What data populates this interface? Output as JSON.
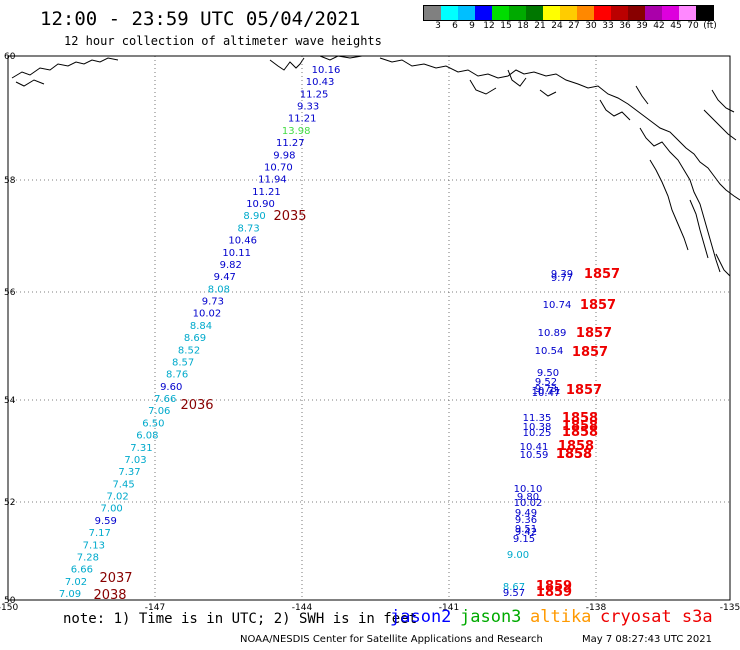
{
  "header": {
    "title": "12:00 - 23:59 UTC 05/04/2021",
    "subtitle": "12 hour collection of altimeter wave heights"
  },
  "colorbar": {
    "colors": [
      "#808080",
      "#00ffff",
      "#00bfff",
      "#0000ff",
      "#00dd00",
      "#00aa00",
      "#007700",
      "#ffff00",
      "#ffcc00",
      "#ff8800",
      "#ff0000",
      "#bb0000",
      "#880000",
      "#aa00aa",
      "#dd00dd",
      "#ff88ff",
      "#000000"
    ],
    "labels": [
      "3",
      "6",
      "9",
      "12",
      "15",
      "18",
      "21",
      "24",
      "27",
      "30",
      "33",
      "36",
      "39",
      "42",
      "45",
      "70",
      "(ft)"
    ]
  },
  "axes": {
    "lat_labels": [
      "60",
      "58",
      "56",
      "54",
      "52",
      "50"
    ],
    "lon_labels": [
      "-150",
      "-147",
      "-144",
      "-141",
      "-138",
      "-135"
    ]
  },
  "tracks": {
    "west": [
      {
        "swh": "10.16",
        "c": "#0000cc"
      },
      {
        "swh": "10.43",
        "c": "#0000cc"
      },
      {
        "swh": "11.25",
        "c": "#0000cc"
      },
      {
        "swh": "9.33",
        "c": "#0000cc"
      },
      {
        "swh": "11.21",
        "c": "#0000cc"
      },
      {
        "swh": "13.98",
        "c": "#44dd44"
      },
      {
        "swh": "11.27",
        "c": "#0000cc"
      },
      {
        "swh": "9.98",
        "c": "#0000cc"
      },
      {
        "swh": "10.70",
        "c": "#0000cc"
      },
      {
        "swh": "11.94",
        "c": "#0000cc"
      },
      {
        "swh": "11.21",
        "c": "#0000cc"
      },
      {
        "swh": "10.90",
        "c": "#0000cc"
      },
      {
        "swh": "8.90",
        "c": "#00aacc"
      },
      {
        "swh": "8.73",
        "c": "#00aacc"
      },
      {
        "swh": "10.46",
        "c": "#0000cc"
      },
      {
        "swh": "10.11",
        "c": "#0000cc"
      },
      {
        "swh": "9.82",
        "c": "#0000cc"
      },
      {
        "swh": "9.47",
        "c": "#0000cc"
      },
      {
        "swh": "8.08",
        "c": "#00aacc"
      },
      {
        "swh": "9.73",
        "c": "#0000cc"
      },
      {
        "swh": "10.02",
        "c": "#0000cc"
      },
      {
        "swh": "8.84",
        "c": "#00aacc"
      },
      {
        "swh": "8.69",
        "c": "#00aacc"
      },
      {
        "swh": "8.52",
        "c": "#00aacc"
      },
      {
        "swh": "8.57",
        "c": "#00aacc"
      },
      {
        "swh": "8.76",
        "c": "#00aacc"
      },
      {
        "swh": "9.60",
        "c": "#0000cc"
      },
      {
        "swh": "7.66",
        "c": "#00aacc"
      },
      {
        "swh": "7.06",
        "c": "#00aacc"
      },
      {
        "swh": "6.50",
        "c": "#00aacc"
      },
      {
        "swh": "6.08",
        "c": "#00aacc"
      },
      {
        "swh": "7.31",
        "c": "#00aacc"
      },
      {
        "swh": "7.03",
        "c": "#00aacc"
      },
      {
        "swh": "7.37",
        "c": "#00aacc"
      },
      {
        "swh": "7.45",
        "c": "#00aacc"
      },
      {
        "swh": "7.02",
        "c": "#00aacc"
      },
      {
        "swh": "7.00",
        "c": "#00aacc"
      },
      {
        "swh": "9.59",
        "c": "#0000cc"
      },
      {
        "swh": "7.17",
        "c": "#00aacc"
      },
      {
        "swh": "7.13",
        "c": "#00aacc"
      },
      {
        "swh": "7.28",
        "c": "#00aacc"
      },
      {
        "swh": "6.66",
        "c": "#00aacc"
      },
      {
        "swh": "7.02",
        "c": "#00aacc"
      },
      {
        "swh": "7.09",
        "c": "#00aacc"
      }
    ],
    "west_times": [
      "2035",
      "2036",
      "2037",
      "2038"
    ],
    "east": [
      {
        "swh": "9.39",
        "c": "#0000cc"
      },
      {
        "swh": "9.77",
        "c": "#0000cc"
      },
      {
        "swh": "10.74",
        "c": "#0000cc"
      },
      {
        "swh": "10.89",
        "c": "#0000cc"
      },
      {
        "swh": "10.54",
        "c": "#0000cc"
      },
      {
        "swh": "9.50",
        "c": "#0000cc"
      },
      {
        "swh": "9.52",
        "c": "#0000cc"
      },
      {
        "swh": "9.73",
        "c": "#0000cc"
      },
      {
        "swh": "10.71",
        "c": "#0000cc"
      },
      {
        "swh": "10.47",
        "c": "#0000cc"
      },
      {
        "swh": "11.35",
        "c": "#0000cc"
      },
      {
        "swh": "10.38",
        "c": "#0000cc"
      },
      {
        "swh": "10.25",
        "c": "#0000cc"
      },
      {
        "swh": "10.41",
        "c": "#0000cc"
      },
      {
        "swh": "10.59",
        "c": "#0000cc"
      },
      {
        "swh": "10.10",
        "c": "#0000cc"
      },
      {
        "swh": "9.80",
        "c": "#0000cc"
      },
      {
        "swh": "10.02",
        "c": "#0000cc"
      },
      {
        "swh": "9.49",
        "c": "#0000cc"
      },
      {
        "swh": "9.36",
        "c": "#0000cc"
      },
      {
        "swh": "9.51",
        "c": "#0000cc"
      },
      {
        "swh": "9.42",
        "c": "#0000cc"
      },
      {
        "swh": "9.15",
        "c": "#0000cc"
      },
      {
        "swh": "9.00",
        "c": "#00aacc"
      },
      {
        "swh": "8.67",
        "c": "#00aacc"
      },
      {
        "swh": "9.57",
        "c": "#0000cc"
      }
    ],
    "east_times": [
      "1857",
      "1857",
      "1857",
      "1857",
      "1857",
      "1858",
      "1858",
      "1858",
      "1858",
      "1858",
      "1858",
      "1859",
      "1859"
    ]
  },
  "legend": {
    "note": "note: 1) Time is in UTC; 2) SWH is in feet",
    "missions": [
      {
        "name": "jason2",
        "color": "#0000ff"
      },
      {
        "name": "jason3",
        "color": "#00aa00"
      },
      {
        "name": "altika",
        "color": "#ff9900"
      },
      {
        "name": "cryosat s3a",
        "color": "#ee0000"
      }
    ]
  },
  "footer": {
    "credit": "NOAA/NESDIS Center for Satellite Applications and Research",
    "stamp": "May  7 08:27:43 UTC 2021"
  }
}
